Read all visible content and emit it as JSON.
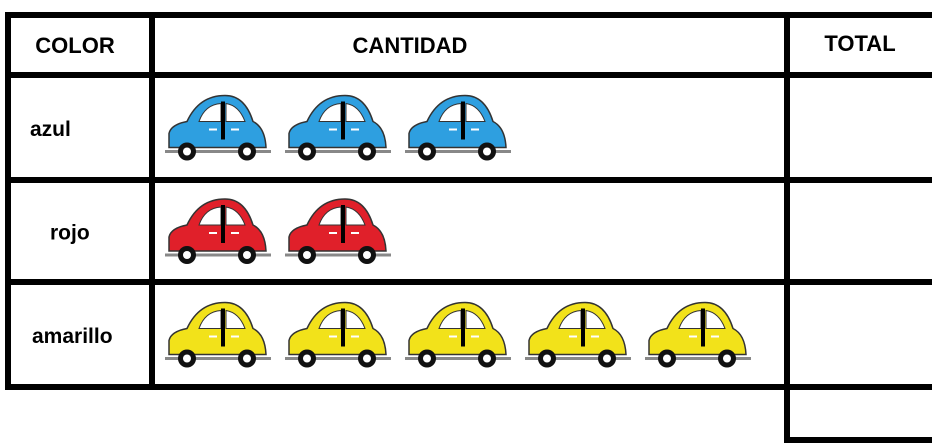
{
  "table": {
    "header": [
      "COLOR",
      "CANTIDAD",
      "TOTAL"
    ],
    "rows": [
      {
        "label": "azul",
        "count": 3,
        "color": "#2e9fe0"
      },
      {
        "label": "rojo",
        "count": 2,
        "color": "#e0202a"
      },
      {
        "label": "amarillo",
        "count": 5,
        "color": "#f2e21a"
      }
    ]
  }
}
